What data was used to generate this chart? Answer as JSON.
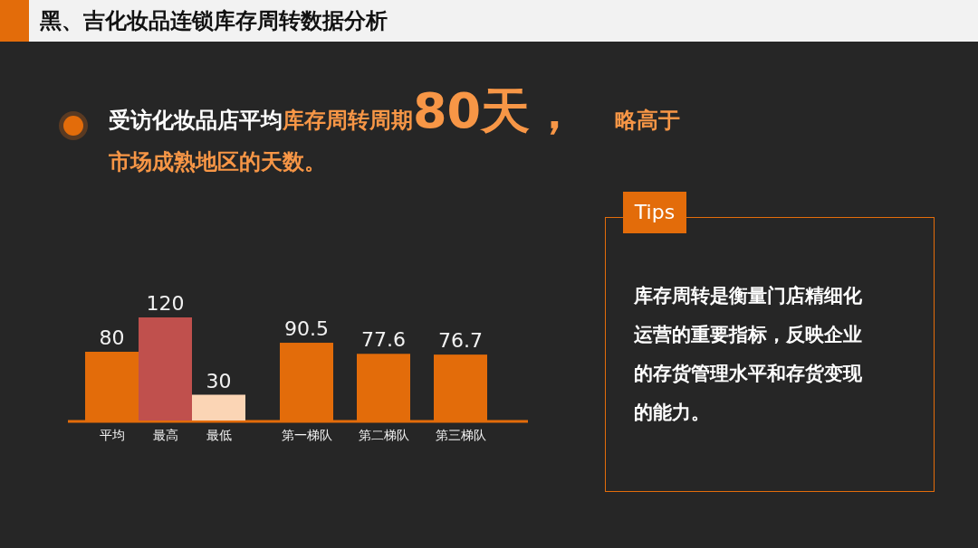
{
  "chart_data": {
    "type": "bar",
    "title": "黑、吉化妆品连锁库存周转数据分析",
    "categories": [
      "平均",
      "最高",
      "最低",
      "第一梯队",
      "第二梯队",
      "第三梯队"
    ],
    "values": [
      80,
      120,
      30,
      90.5,
      77.6,
      76.7
    ],
    "colors": [
      "#e36c0a",
      "#c0504d",
      "#fbd5b5",
      "#e36c0a",
      "#e36c0a",
      "#e36c0a"
    ],
    "data_labels": true,
    "annotations": [
      "受访化妆品店平均",
      "库存周转周期",
      "80天，",
      "略高于市场成熟地区的天数。",
      "Tips",
      "库存周转是衡量门店精细化运营的重要指标，反映企业的存货管理水平和存货变现的能力。"
    ]
  }
}
